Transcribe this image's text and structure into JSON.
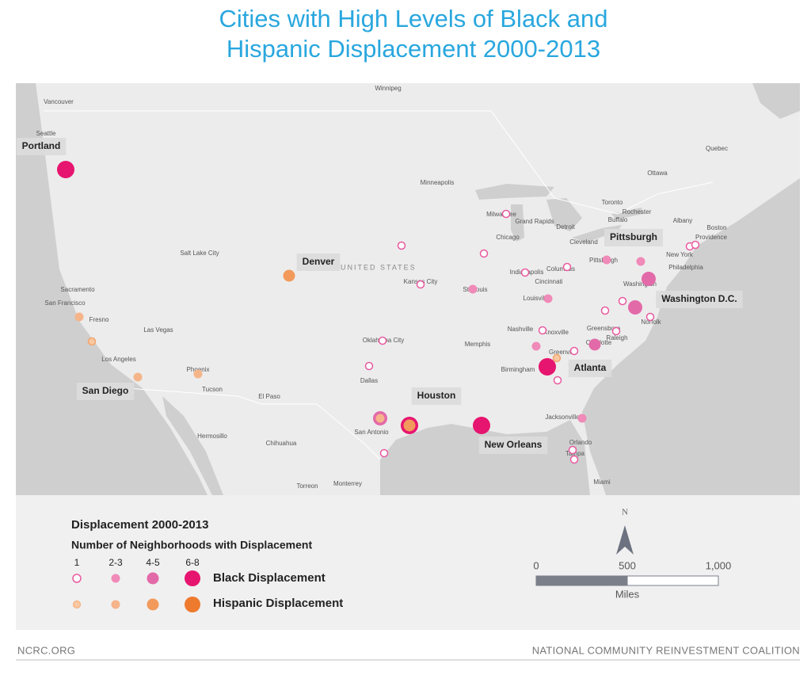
{
  "header": {
    "title_lines": [
      "Cities with High Levels of Black and",
      "Hispanic Displacement 2000-2013"
    ]
  },
  "map": {
    "country_label": "UNITED STATES",
    "highlight_labels": [
      "Portland",
      "Denver",
      "Pittsburgh",
      "Washington D.C.",
      "Atlanta",
      "San Diego",
      "Houston",
      "New Orleans"
    ],
    "place_labels": [
      "Winnipeg",
      "Vancouver",
      "Seattle",
      "Ottawa",
      "Quebec",
      "Minneapolis",
      "Toronto",
      "Rochester",
      "Buffalo",
      "Albany",
      "Boston",
      "Providence",
      "New York",
      "Philadelphia",
      "Washington",
      "Norfolk",
      "Detroit",
      "Cleveland",
      "Chicago",
      "Milwaukee",
      "Grand Rapids",
      "Pittsburgh",
      "Columbus",
      "Indianapolis",
      "Cincinnati",
      "Louisville",
      "St. Louis",
      "Kansas City",
      "Nashville",
      "Knoxville",
      "Greensboro",
      "Raleigh",
      "Charlotte",
      "Greenville",
      "Memphis",
      "Birmingham",
      "Oklahoma City",
      "Dallas",
      "El Paso",
      "Tucson",
      "Phoenix",
      "Las Vegas",
      "Los Angeles",
      "Fresno",
      "Sacramento",
      "San Francisco",
      "Salt Lake City",
      "San Antonio",
      "Jacksonville",
      "Orlando",
      "Tampa",
      "Miami",
      "Hermosillo",
      "Chihuahua",
      "Torreon",
      "Monterrey"
    ]
  },
  "legend": {
    "title": "Displacement 2000-2013",
    "subtitle": "Number of Neighborhoods with Displacement",
    "classes": [
      "1",
      "2-3",
      "4-5",
      "6-8"
    ],
    "series": [
      "Black Displacement",
      "Hispanic Displacement"
    ]
  },
  "scale": {
    "north": "N",
    "ticks": [
      "0",
      "500",
      "1,000"
    ],
    "unit": "Miles"
  },
  "footer": {
    "left": "NCRC.ORG",
    "right": "NATIONAL COMMUNITY REINVESTMENT COALITION"
  }
}
